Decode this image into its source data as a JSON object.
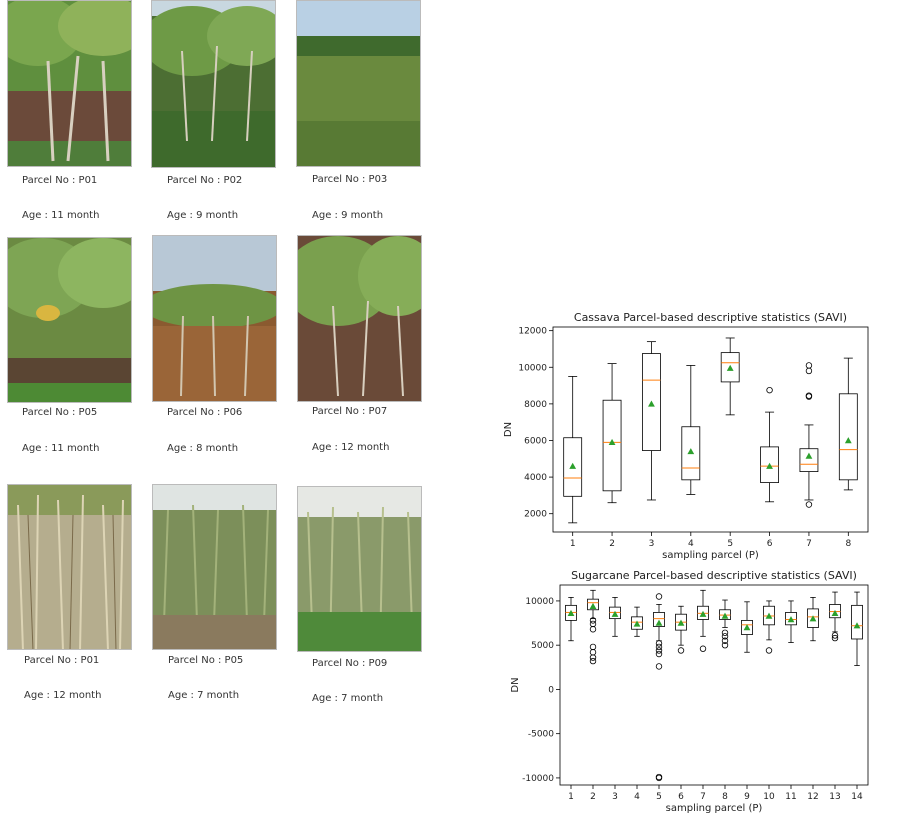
{
  "photos": [
    {
      "parcel": "Parcel No : P01",
      "age": "Age : 11 month",
      "crop": "cassava"
    },
    {
      "parcel": "Parcel No : P02",
      "age": "Age : 9 month",
      "crop": "cassava"
    },
    {
      "parcel": "Parcel No : P03",
      "age": "Age : 9 month",
      "crop": "cassava"
    },
    {
      "parcel": "Parcel No : P05",
      "age": "Age : 11 month",
      "crop": "cassava"
    },
    {
      "parcel": "Parcel No : P06",
      "age": "Age : 8 month",
      "crop": "cassava"
    },
    {
      "parcel": "Parcel No : P07",
      "age": "Age : 12 month",
      "crop": "cassava"
    },
    {
      "parcel": "Parcel No : P01",
      "age": "Age : 12 month",
      "crop": "sugarcane"
    },
    {
      "parcel": "Parcel No : P05",
      "age": "Age : 7 month",
      "crop": "sugarcane"
    },
    {
      "parcel": "Parcel No : P09",
      "age": "Age : 7 month",
      "crop": "sugarcane"
    }
  ],
  "chart_data": [
    {
      "type": "box",
      "title": "Cassava Parcel-based descriptive statistics (SAVI)",
      "xlabel": "sampling parcel (P)",
      "ylabel": "DN",
      "ylim": [
        1000,
        12200
      ],
      "yticks": [
        2000,
        4000,
        6000,
        8000,
        10000,
        12000
      ],
      "categories": [
        "1",
        "2",
        "3",
        "4",
        "5",
        "6",
        "7",
        "8"
      ],
      "boxes": [
        {
          "min": 1500,
          "q1": 2950,
          "median": 3950,
          "q3": 6150,
          "max": 9500,
          "mean": 4600,
          "outliers": []
        },
        {
          "min": 2600,
          "q1": 3250,
          "median": 5900,
          "q3": 8200,
          "max": 10200,
          "mean": 5900,
          "outliers": []
        },
        {
          "min": 2750,
          "q1": 5450,
          "median": 9300,
          "q3": 10750,
          "max": 11400,
          "mean": 8000,
          "outliers": []
        },
        {
          "min": 3050,
          "q1": 3850,
          "median": 4500,
          "q3": 6750,
          "max": 10100,
          "mean": 5400,
          "outliers": []
        },
        {
          "min": 7400,
          "q1": 9200,
          "median": 10250,
          "q3": 10800,
          "max": 11600,
          "mean": 9950,
          "outliers": []
        },
        {
          "min": 2650,
          "q1": 3700,
          "median": 4600,
          "q3": 5650,
          "max": 7550,
          "mean": 4600,
          "outliers": [
            8750
          ]
        },
        {
          "min": 2750,
          "q1": 4300,
          "median": 4700,
          "q3": 5550,
          "max": 6850,
          "mean": 5150,
          "outliers": [
            2500,
            8400,
            8450,
            9800,
            10100
          ]
        },
        {
          "min": 3300,
          "q1": 3850,
          "median": 5500,
          "q3": 8550,
          "max": 10500,
          "mean": 6000,
          "outliers": []
        }
      ]
    },
    {
      "type": "box",
      "title": "Sugarcane Parcel-based descriptive statistics (SAVI)",
      "xlabel": "sampling parcel (P)",
      "ylabel": "DN",
      "ylim": [
        -10800,
        11800
      ],
      "yticks": [
        -10000,
        -5000,
        0,
        5000,
        10000
      ],
      "categories": [
        "1",
        "2",
        "3",
        "4",
        "5",
        "6",
        "7",
        "8",
        "9",
        "10",
        "11",
        "12",
        "13",
        "14"
      ],
      "boxes": [
        {
          "min": 5500,
          "q1": 7800,
          "median": 8700,
          "q3": 9500,
          "max": 10400,
          "mean": 8600,
          "outliers": []
        },
        {
          "min": 8000,
          "q1": 9000,
          "median": 9800,
          "q3": 10200,
          "max": 11200,
          "mean": 9400,
          "outliers": [
            3200,
            3600,
            4200,
            4800,
            6800,
            7400,
            7800
          ]
        },
        {
          "min": 6000,
          "q1": 8000,
          "median": 8700,
          "q3": 9300,
          "max": 10400,
          "mean": 8500,
          "outliers": []
        },
        {
          "min": 6000,
          "q1": 6800,
          "median": 7600,
          "q3": 8200,
          "max": 9300,
          "mean": 7400,
          "outliers": []
        },
        {
          "min": 5500,
          "q1": 7100,
          "median": 8000,
          "q3": 8700,
          "max": 9600,
          "mean": 7500,
          "outliers": [
            -10000,
            -9900,
            2600,
            4000,
            4400,
            4800,
            5200,
            10500
          ]
        },
        {
          "min": 5000,
          "q1": 6700,
          "median": 7600,
          "q3": 8500,
          "max": 9400,
          "mean": 7500,
          "outliers": [
            4400
          ]
        },
        {
          "min": 6000,
          "q1": 7900,
          "median": 8600,
          "q3": 9400,
          "max": 11200,
          "mean": 8500,
          "outliers": [
            4600
          ]
        },
        {
          "min": 7000,
          "q1": 7900,
          "median": 8400,
          "q3": 9000,
          "max": 10100,
          "mean": 8300,
          "outliers": [
            5000,
            5500,
            6000,
            6400
          ]
        },
        {
          "min": 4200,
          "q1": 6200,
          "median": 7300,
          "q3": 7800,
          "max": 9900,
          "mean": 7000,
          "outliers": []
        },
        {
          "min": 5600,
          "q1": 7300,
          "median": 8300,
          "q3": 9400,
          "max": 10000,
          "mean": 8300,
          "outliers": [
            4400
          ]
        },
        {
          "min": 5300,
          "q1": 7300,
          "median": 7900,
          "q3": 8700,
          "max": 10000,
          "mean": 7900,
          "outliers": []
        },
        {
          "min": 5500,
          "q1": 7000,
          "median": 8200,
          "q3": 9100,
          "max": 10400,
          "mean": 8000,
          "outliers": []
        },
        {
          "min": 6500,
          "q1": 8100,
          "median": 8800,
          "q3": 9600,
          "max": 11000,
          "mean": 8600,
          "outliers": [
            5800,
            6100
          ]
        },
        {
          "min": 2700,
          "q1": 5700,
          "median": 7200,
          "q3": 9500,
          "max": 11000,
          "mean": 7200,
          "outliers": []
        }
      ]
    }
  ],
  "colors": {
    "median": "#ff7f0e",
    "mean": "#2ca02c",
    "box": "#000000"
  }
}
